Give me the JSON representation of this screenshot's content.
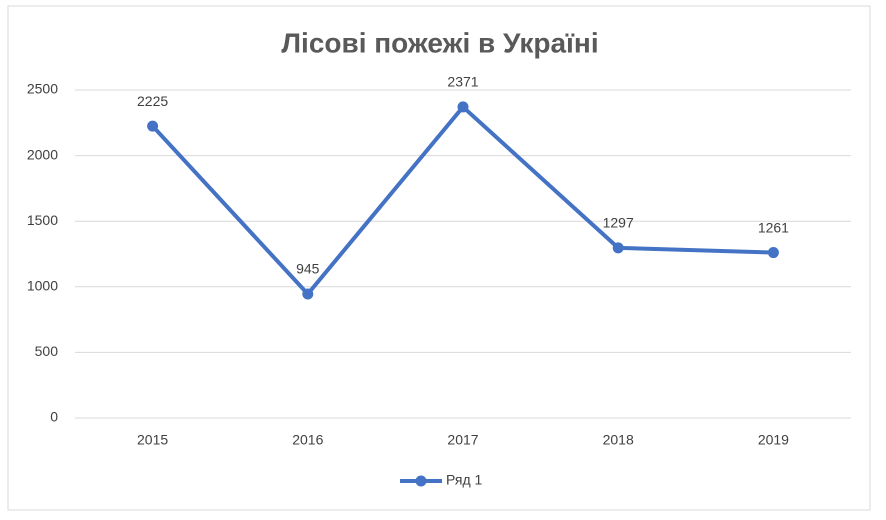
{
  "chart_data": {
    "type": "line",
    "title": "Лісові пожежі в Україні",
    "categories": [
      "2015",
      "2016",
      "2017",
      "2018",
      "2019"
    ],
    "series": [
      {
        "name": "Ряд 1",
        "color": "#4472c4",
        "values": [
          2225,
          945,
          2371,
          1297,
          1261
        ]
      }
    ],
    "ylim": [
      0,
      2500
    ],
    "yticks": [
      0,
      500,
      1000,
      1500,
      2000,
      2500
    ],
    "grid": true,
    "legend": "bottom",
    "data_labels": true
  }
}
